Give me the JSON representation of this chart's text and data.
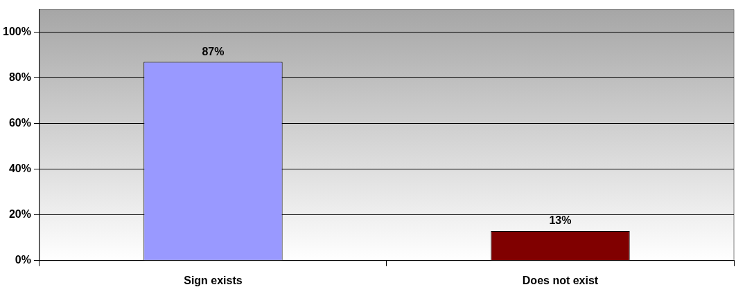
{
  "chart_data": {
    "type": "bar",
    "categories": [
      "Sign exists",
      "Does not exist"
    ],
    "values": [
      87,
      13
    ],
    "colors": [
      "#9999ff",
      "#800000"
    ],
    "value_labels": [
      "87%",
      "13%"
    ],
    "ylim": [
      0,
      110
    ],
    "yticks": [
      {
        "value": 0,
        "label": "0%"
      },
      {
        "value": 20,
        "label": "20%"
      },
      {
        "value": 40,
        "label": "40%"
      },
      {
        "value": 60,
        "label": "60%"
      },
      {
        "value": 80,
        "label": "80%"
      },
      {
        "value": 100,
        "label": "100%"
      }
    ],
    "grid": "y",
    "legend": false
  }
}
